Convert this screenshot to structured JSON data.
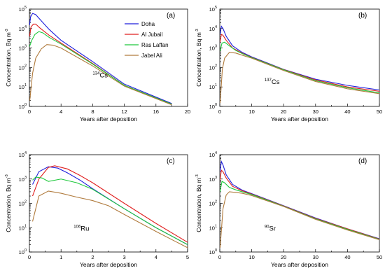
{
  "chart_data": [
    {
      "type": "line",
      "panel_label": "(a)",
      "isotope": {
        "mass": "134",
        "symbol": "Cs"
      },
      "xlabel": "Years after deposition",
      "ylabel": "Concentration, Bq m-3",
      "ylabel_parts": {
        "text": "Concentration, Bq m",
        "exp": "-3"
      },
      "yscale": "log",
      "xlim": [
        0,
        20
      ],
      "ylim": [
        1,
        100000
      ],
      "xticks": [
        "0",
        "4",
        "8",
        "12",
        "16",
        "20"
      ],
      "yticks": [
        {
          "base": "10",
          "exp": "0"
        },
        {
          "base": "10",
          "exp": "1"
        },
        {
          "base": "10",
          "exp": "2"
        },
        {
          "base": "10",
          "exp": "3"
        },
        {
          "base": "10",
          "exp": "4"
        },
        {
          "base": "10",
          "exp": "5"
        }
      ],
      "legend": "top-right",
      "series": [
        {
          "name": "Doha",
          "x": [
            0.02,
            0.15,
            0.4,
            0.8,
            1.5,
            2.5,
            4,
            8,
            12,
            18
          ],
          "y": [
            15000,
            40000,
            60000,
            52000,
            25000,
            9000,
            2500,
            200,
            14,
            1.4
          ]
        },
        {
          "name": "Al Jubail",
          "x": [
            0.02,
            0.2,
            0.5,
            0.8,
            1.3,
            2.5,
            4,
            8,
            12,
            18
          ],
          "y": [
            4000,
            12000,
            17000,
            17000,
            11000,
            4500,
            1800,
            160,
            12,
            1.3
          ]
        },
        {
          "name": "Ras Laffan",
          "x": [
            0.02,
            0.3,
            0.7,
            1.2,
            1.7,
            2.5,
            4,
            8,
            12,
            18
          ],
          "y": [
            1200,
            2500,
            5000,
            7000,
            6000,
            3500,
            1600,
            150,
            12,
            1.3
          ]
        },
        {
          "name": "Jabel Ali",
          "x": [
            0.05,
            0.4,
            0.8,
            1.5,
            2.2,
            3,
            4,
            8,
            12,
            18
          ],
          "y": [
            2,
            50,
            300,
            900,
            1500,
            1400,
            1000,
            120,
            11,
            1.2
          ]
        }
      ]
    },
    {
      "type": "line",
      "panel_label": "(b)",
      "isotope": {
        "mass": "137",
        "symbol": "Cs"
      },
      "xlabel": "Years after deposition",
      "ylabel": "Concentration, Bq m-3",
      "ylabel_parts": {
        "text": "Concentration, Bq m",
        "exp": "-3"
      },
      "yscale": "log",
      "xlim": [
        0,
        50
      ],
      "ylim": [
        1,
        100000
      ],
      "xticks": [
        "0",
        "10",
        "20",
        "30",
        "40",
        "50"
      ],
      "yticks": [
        {
          "base": "10",
          "exp": "0"
        },
        {
          "base": "10",
          "exp": "1"
        },
        {
          "base": "10",
          "exp": "2"
        },
        {
          "base": "10",
          "exp": "3"
        },
        {
          "base": "10",
          "exp": "4"
        },
        {
          "base": "10",
          "exp": "5"
        }
      ],
      "series": [
        {
          "name": "Doha",
          "x": [
            0.05,
            0.5,
            1,
            2,
            4,
            7,
            10,
            20,
            30,
            40,
            50
          ],
          "y": [
            5000,
            13000,
            10000,
            4000,
            1300,
            600,
            350,
            80,
            25,
            12,
            7
          ]
        },
        {
          "name": "Al Jubail",
          "x": [
            0.05,
            0.5,
            1,
            2,
            4,
            7,
            10,
            20,
            30,
            40,
            50
          ],
          "y": [
            2000,
            5000,
            4500,
            2500,
            1000,
            550,
            330,
            78,
            23,
            10,
            6
          ]
        },
        {
          "name": "Ras Laffan",
          "x": [
            0.05,
            0.7,
            1.5,
            3,
            5,
            7,
            10,
            20,
            30,
            40,
            50
          ],
          "y": [
            700,
            1800,
            2000,
            1300,
            750,
            520,
            320,
            76,
            21,
            9,
            5
          ]
        },
        {
          "name": "Jabel Ali",
          "x": [
            0.1,
            0.8,
            1.5,
            3,
            5,
            7,
            10,
            20,
            30,
            40,
            50
          ],
          "y": [
            1.5,
            80,
            300,
            600,
            550,
            430,
            300,
            70,
            19,
            8,
            4.5
          ]
        }
      ]
    },
    {
      "type": "line",
      "panel_label": "(c)",
      "isotope": {
        "mass": "106",
        "symbol": "Ru"
      },
      "xlabel": "Years after deposition",
      "ylabel": "Concentration, Bq m-3",
      "ylabel_parts": {
        "text": "Concentration, Bq m",
        "exp": "-3"
      },
      "yscale": "log",
      "xlim": [
        0,
        5
      ],
      "ylim": [
        1,
        10000
      ],
      "xticks": [
        "0",
        "1",
        "2",
        "3",
        "4",
        "5"
      ],
      "yticks": [
        {
          "base": "10",
          "exp": "0"
        },
        {
          "base": "10",
          "exp": "1"
        },
        {
          "base": "10",
          "exp": "2"
        },
        {
          "base": "10",
          "exp": "3"
        },
        {
          "base": "10",
          "exp": "4"
        }
      ],
      "series": [
        {
          "name": "Doha",
          "x": [
            0.1,
            0.3,
            0.6,
            0.9,
            1.2,
            1.6,
            2,
            3,
            4,
            5
          ],
          "y": [
            600,
            2000,
            3200,
            2800,
            1800,
            900,
            400,
            60,
            10,
            2
          ]
        },
        {
          "name": "Al Jubail",
          "x": [
            0.1,
            0.3,
            0.6,
            0.8,
            1.2,
            1.6,
            2,
            3,
            4,
            5
          ],
          "y": [
            200,
            1000,
            3000,
            3500,
            2600,
            1400,
            700,
            100,
            15,
            2.5
          ]
        },
        {
          "name": "Ras Laffan",
          "x": [
            0.1,
            0.2,
            0.4,
            0.6,
            1,
            1.5,
            2,
            3,
            4,
            5
          ],
          "y": [
            900,
            1200,
            1100,
            800,
            1000,
            700,
            380,
            60,
            10,
            2
          ]
        },
        {
          "name": "Jabel Ali",
          "x": [
            0.1,
            0.3,
            0.6,
            1,
            1.5,
            2,
            2.5,
            3,
            4,
            5
          ],
          "y": [
            18,
            200,
            320,
            260,
            180,
            130,
            80,
            35,
            7,
            1.5
          ]
        }
      ]
    },
    {
      "type": "line",
      "panel_label": "(d)",
      "isotope": {
        "mass": "90",
        "symbol": "Sr"
      },
      "xlabel": "Years after deposition",
      "ylabel": "Concentration, Bq m-3",
      "ylabel_parts": {
        "text": "Concentration, Bq m",
        "exp": "-3"
      },
      "yscale": "log",
      "xlim": [
        0,
        50
      ],
      "ylim": [
        1,
        10000
      ],
      "xticks": [
        "0",
        "10",
        "20",
        "30",
        "40",
        "50"
      ],
      "yticks": [
        {
          "base": "10",
          "exp": "0"
        },
        {
          "base": "10",
          "exp": "1"
        },
        {
          "base": "10",
          "exp": "2"
        },
        {
          "base": "10",
          "exp": "3"
        },
        {
          "base": "10",
          "exp": "4"
        }
      ],
      "series": [
        {
          "name": "Doha",
          "x": [
            0.05,
            0.5,
            1,
            2,
            4,
            7,
            10,
            20,
            30,
            40,
            50
          ],
          "y": [
            2000,
            5200,
            3800,
            1500,
            600,
            350,
            250,
            80,
            25,
            9,
            3.5
          ]
        },
        {
          "name": "Al Jubail",
          "x": [
            0.05,
            0.5,
            1,
            2,
            4,
            7,
            10,
            20,
            30,
            40,
            50
          ],
          "y": [
            900,
            2300,
            2000,
            1100,
            500,
            330,
            240,
            78,
            24,
            9,
            3.4
          ]
        },
        {
          "name": "Ras Laffan",
          "x": [
            0.05,
            0.7,
            1.5,
            3,
            5,
            7,
            10,
            20,
            30,
            40,
            50
          ],
          "y": [
            300,
            800,
            700,
            450,
            360,
            300,
            230,
            76,
            23,
            8.5,
            3.3
          ]
        },
        {
          "name": "Jabel Ali",
          "x": [
            0.1,
            1,
            2,
            3,
            5,
            7,
            10,
            20,
            30,
            40,
            50
          ],
          "y": [
            1.5,
            60,
            220,
            300,
            280,
            260,
            210,
            74,
            22,
            8,
            3.2
          ]
        }
      ]
    }
  ],
  "legend": {
    "entries": [
      {
        "name": "Doha",
        "color": "#1f1fdc"
      },
      {
        "name": "Al Jubail",
        "color": "#e01f1f"
      },
      {
        "name": "Ras Laffan",
        "color": "#1ec83c"
      },
      {
        "name": "Jabel Ali",
        "color": "#b07a3c"
      }
    ]
  }
}
